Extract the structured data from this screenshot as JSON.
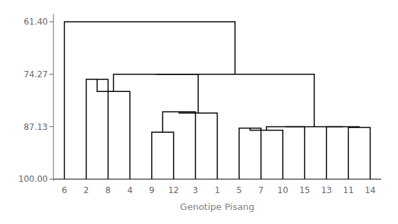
{
  "chart_data": {
    "type": "dendrogram",
    "xlabel": "Genotipe Pisang",
    "categories": [
      "6",
      "2",
      "8",
      "4",
      "9",
      "12",
      "3",
      "1",
      "5",
      "7",
      "10",
      "15",
      "13",
      "11",
      "14"
    ],
    "leaf_y": 100.0,
    "merges": [
      {
        "left": 1,
        "right": 2,
        "height": 75.5
      },
      {
        "left": 15,
        "right": 3,
        "height": 78.5
      },
      {
        "left": 4,
        "right": 5,
        "height": 88.5
      },
      {
        "left": 17,
        "right": 6,
        "height": 83.5
      },
      {
        "left": 18,
        "right": 7,
        "height": 83.8
      },
      {
        "left": 16,
        "right": 19,
        "height": 74.27
      },
      {
        "left": 8,
        "right": 9,
        "height": 87.5
      },
      {
        "left": 21,
        "right": 10,
        "height": 88.0
      },
      {
        "left": 22,
        "right": 11,
        "height": 87.13
      },
      {
        "left": 13,
        "right": 14,
        "height": 87.3
      },
      {
        "left": 12,
        "right": 24,
        "height": 87.13
      },
      {
        "left": 23,
        "right": 25,
        "height": 87.13
      },
      {
        "left": 20,
        "right": 26,
        "height": 74.27
      },
      {
        "left": 0,
        "right": 27,
        "height": 61.4
      }
    ],
    "color": "#000000",
    "ylim": [
      100.5,
      59.5
    ],
    "yticks": [
      {
        "value": 61.4,
        "label": "61.40"
      },
      {
        "value": 74.27,
        "label": "74.27"
      },
      {
        "value": 87.13,
        "label": "87.13"
      },
      {
        "value": 100.0,
        "label": "100.00"
      }
    ],
    "grid": false
  }
}
